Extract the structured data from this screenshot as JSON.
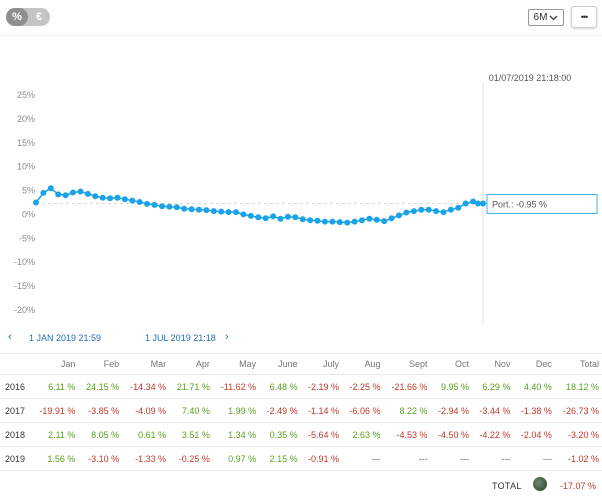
{
  "toolbar": {
    "percent_label": "%",
    "euro_label": "€",
    "period_value": "6M",
    "more_label": "•••"
  },
  "chart_data": {
    "type": "line",
    "ylim": [
      -20,
      25
    ],
    "yticks": [
      "25%",
      "20%",
      "15%",
      "10%",
      "5%",
      "0%",
      "-5%",
      "-10%",
      "-15%",
      "-20%"
    ],
    "xlim": [
      "2019-01-01",
      "2019-07-01"
    ],
    "series": [
      {
        "name": "Port.",
        "color": "#1aa3e8",
        "x": [
          "2019-01-01",
          "2019-01-04",
          "2019-01-07",
          "2019-01-10",
          "2019-01-13",
          "2019-01-16",
          "2019-01-19",
          "2019-01-22",
          "2019-01-25",
          "2019-01-28",
          "2019-01-31",
          "2019-02-03",
          "2019-02-06",
          "2019-02-09",
          "2019-02-12",
          "2019-02-15",
          "2019-02-18",
          "2019-02-21",
          "2019-02-24",
          "2019-02-27",
          "2019-03-02",
          "2019-03-05",
          "2019-03-08",
          "2019-03-11",
          "2019-03-14",
          "2019-03-17",
          "2019-03-20",
          "2019-03-23",
          "2019-03-26",
          "2019-03-29",
          "2019-04-01",
          "2019-04-04",
          "2019-04-07",
          "2019-04-10",
          "2019-04-13",
          "2019-04-16",
          "2019-04-19",
          "2019-04-22",
          "2019-04-25",
          "2019-04-28",
          "2019-05-01",
          "2019-05-04",
          "2019-05-07",
          "2019-05-10",
          "2019-05-13",
          "2019-05-16",
          "2019-05-19",
          "2019-05-22",
          "2019-05-25",
          "2019-05-28",
          "2019-05-31",
          "2019-06-03",
          "2019-06-06",
          "2019-06-09",
          "2019-06-12",
          "2019-06-15",
          "2019-06-18",
          "2019-06-21",
          "2019-06-24",
          "2019-06-27",
          "2019-06-29",
          "2019-07-01"
        ],
        "y": [
          2.5,
          4.5,
          5.5,
          4.2,
          4.0,
          4.6,
          4.8,
          4.3,
          3.8,
          3.5,
          3.4,
          3.5,
          3.2,
          2.9,
          2.6,
          2.2,
          2.0,
          1.7,
          1.6,
          1.5,
          1.2,
          1.1,
          1.0,
          0.9,
          0.7,
          0.6,
          0.5,
          0.5,
          0.0,
          -0.3,
          -0.6,
          -0.8,
          -0.4,
          -0.9,
          -0.5,
          -0.6,
          -1.0,
          -1.2,
          -1.3,
          -1.5,
          -1.5,
          -1.6,
          -1.7,
          -1.5,
          -1.2,
          -0.9,
          -1.1,
          -1.4,
          -0.8,
          -0.2,
          0.4,
          0.7,
          1.0,
          1.0,
          0.7,
          0.5,
          1.0,
          1.4,
          2.3,
          2.7,
          2.3,
          2.3
        ]
      }
    ],
    "crosshair_label": "01/07/2019 21:18:00",
    "tooltip": "Port.: -0.95 %",
    "reference_level": 2.3
  },
  "date_nav": {
    "start": "1 JAN 2019 21:59",
    "end": "1 JUL 2019 21:18",
    "prev_arrow": "‹",
    "next_arrow": "›"
  },
  "table": {
    "headers": [
      "",
      "Jan",
      "Feb",
      "Mar",
      "Apr",
      "May",
      "June",
      "July",
      "Aug",
      "Sept",
      "Oct",
      "Nov",
      "Dec",
      "Total"
    ],
    "rows": [
      [
        "2016",
        "6.11 %",
        "24.15 %",
        "-14.34 %",
        "21.71 %",
        "-11.62 %",
        "6.48 %",
        "-2.19 %",
        "-2.25 %",
        "-21.66 %",
        "9.95 %",
        "6.29 %",
        "4.40 %",
        "18.12 %"
      ],
      [
        "2017",
        "-19.91 %",
        "-3.85 %",
        "-4.09 %",
        "7.40 %",
        "1.99 %",
        "-2.49 %",
        "-1.14 %",
        "-6.06 %",
        "8.22 %",
        "-2.94 %",
        "-3.44 %",
        "-1.38 %",
        "-26.73 %"
      ],
      [
        "2018",
        "2.11 %",
        "8.05 %",
        "0.61 %",
        "3.51 %",
        "1.34 %",
        "0.35 %",
        "-5.64 %",
        "2.63 %",
        "-4.53 %",
        "-4.50 %",
        "-4.22 %",
        "-2.04 %",
        "-3.20 %"
      ],
      [
        "2019",
        "1.56 %",
        "-3.10 %",
        "-1.33 %",
        "-0.25 %",
        "0.97 %",
        "2.15 %",
        "-0.91 %",
        "---",
        "---",
        "---",
        "---",
        "---",
        "-1.02 %"
      ]
    ]
  },
  "total": {
    "label": "TOTAL",
    "value": "-17.07 %"
  },
  "colors": {
    "positive": "#5a9f1e",
    "negative": "#c0392b",
    "line": "#1aa3e8",
    "accent": "#1f6fb2"
  }
}
